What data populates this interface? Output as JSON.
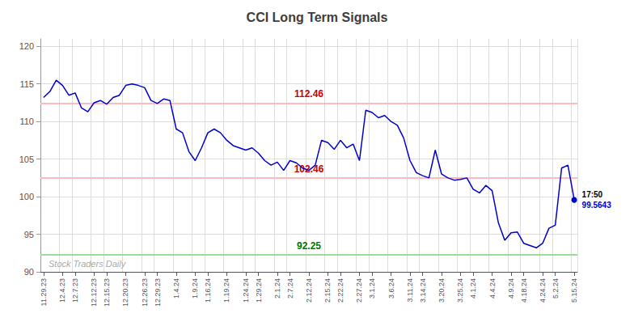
{
  "chart_data": {
    "type": "line",
    "title": "CCI Long Term Signals",
    "categories": [
      "11.29.23",
      null,
      null,
      "12.4.23",
      null,
      "12.7.23",
      null,
      null,
      "12.12.23",
      null,
      "12.15.23",
      null,
      null,
      "12.20.23",
      null,
      null,
      "12.26.23",
      null,
      "12.29.23",
      null,
      null,
      "1.4.24",
      null,
      null,
      "1.9.24",
      null,
      "1.16.24",
      null,
      null,
      "1.19.24",
      null,
      null,
      "1.24.24",
      null,
      "1.29.24",
      null,
      null,
      "2.1.24",
      null,
      "2.7.24",
      null,
      null,
      "2.12.24",
      null,
      null,
      "2.15.24",
      null,
      "2.22.24",
      null,
      null,
      "2.27.24",
      null,
      "3.1.24",
      null,
      null,
      "3.6.24",
      null,
      null,
      "3.11.24",
      null,
      "3.14.24",
      null,
      null,
      "3.20.24",
      null,
      null,
      "3.25.24",
      null,
      "4.1.24",
      null,
      null,
      "4.4.24",
      null,
      null,
      "4.9.24",
      null,
      "4.18.24",
      null,
      null,
      "4.24.24",
      null,
      "5.2.24",
      null,
      null,
      "5.15.24"
    ],
    "values": [
      113.2,
      114.0,
      115.5,
      114.8,
      113.5,
      113.8,
      111.8,
      111.3,
      112.5,
      112.8,
      112.3,
      113.2,
      113.5,
      114.8,
      115.0,
      114.8,
      114.5,
      112.8,
      112.4,
      113.0,
      112.8,
      109.0,
      108.5,
      106.0,
      104.8,
      106.5,
      108.5,
      109.0,
      108.5,
      107.5,
      106.8,
      106.5,
      106.2,
      106.5,
      105.8,
      104.8,
      104.2,
      104.6,
      103.5,
      104.8,
      104.5,
      103.8,
      103.5,
      104.2,
      107.5,
      107.2,
      106.3,
      107.5,
      106.5,
      107.0,
      104.8,
      111.5,
      111.2,
      110.5,
      110.8,
      110.0,
      109.5,
      107.8,
      104.8,
      103.2,
      102.8,
      102.5,
      106.2,
      103.0,
      102.5,
      102.2,
      102.3,
      102.5,
      101.0,
      100.5,
      101.5,
      100.8,
      96.5,
      94.2,
      95.2,
      95.3,
      93.8,
      93.5,
      93.2,
      93.8,
      95.8,
      96.2,
      103.8,
      104.2,
      99.5643
    ],
    "color": "#0000cc",
    "ylim": [
      90,
      121
    ],
    "yticks": [
      90,
      95,
      100,
      105,
      110,
      115,
      120
    ],
    "grid": true,
    "hlines": [
      {
        "value": 112.46,
        "label": "112.46",
        "color": "#ffbbbb",
        "label_color": "#cc0000"
      },
      {
        "value": 102.46,
        "label": "102.46",
        "color": "#ffbbbb",
        "label_color": "#cc0000"
      },
      {
        "value": 92.25,
        "label": "92.25",
        "color": "#99dd99",
        "label_color": "#007700"
      }
    ],
    "annotations": [
      {
        "text": "17:50",
        "color": "#000000"
      },
      {
        "text": "99.5643",
        "color": "#0000cc"
      }
    ],
    "watermark": {
      "text": "Stock Traders Daily",
      "color": "#aaaaaa"
    }
  }
}
